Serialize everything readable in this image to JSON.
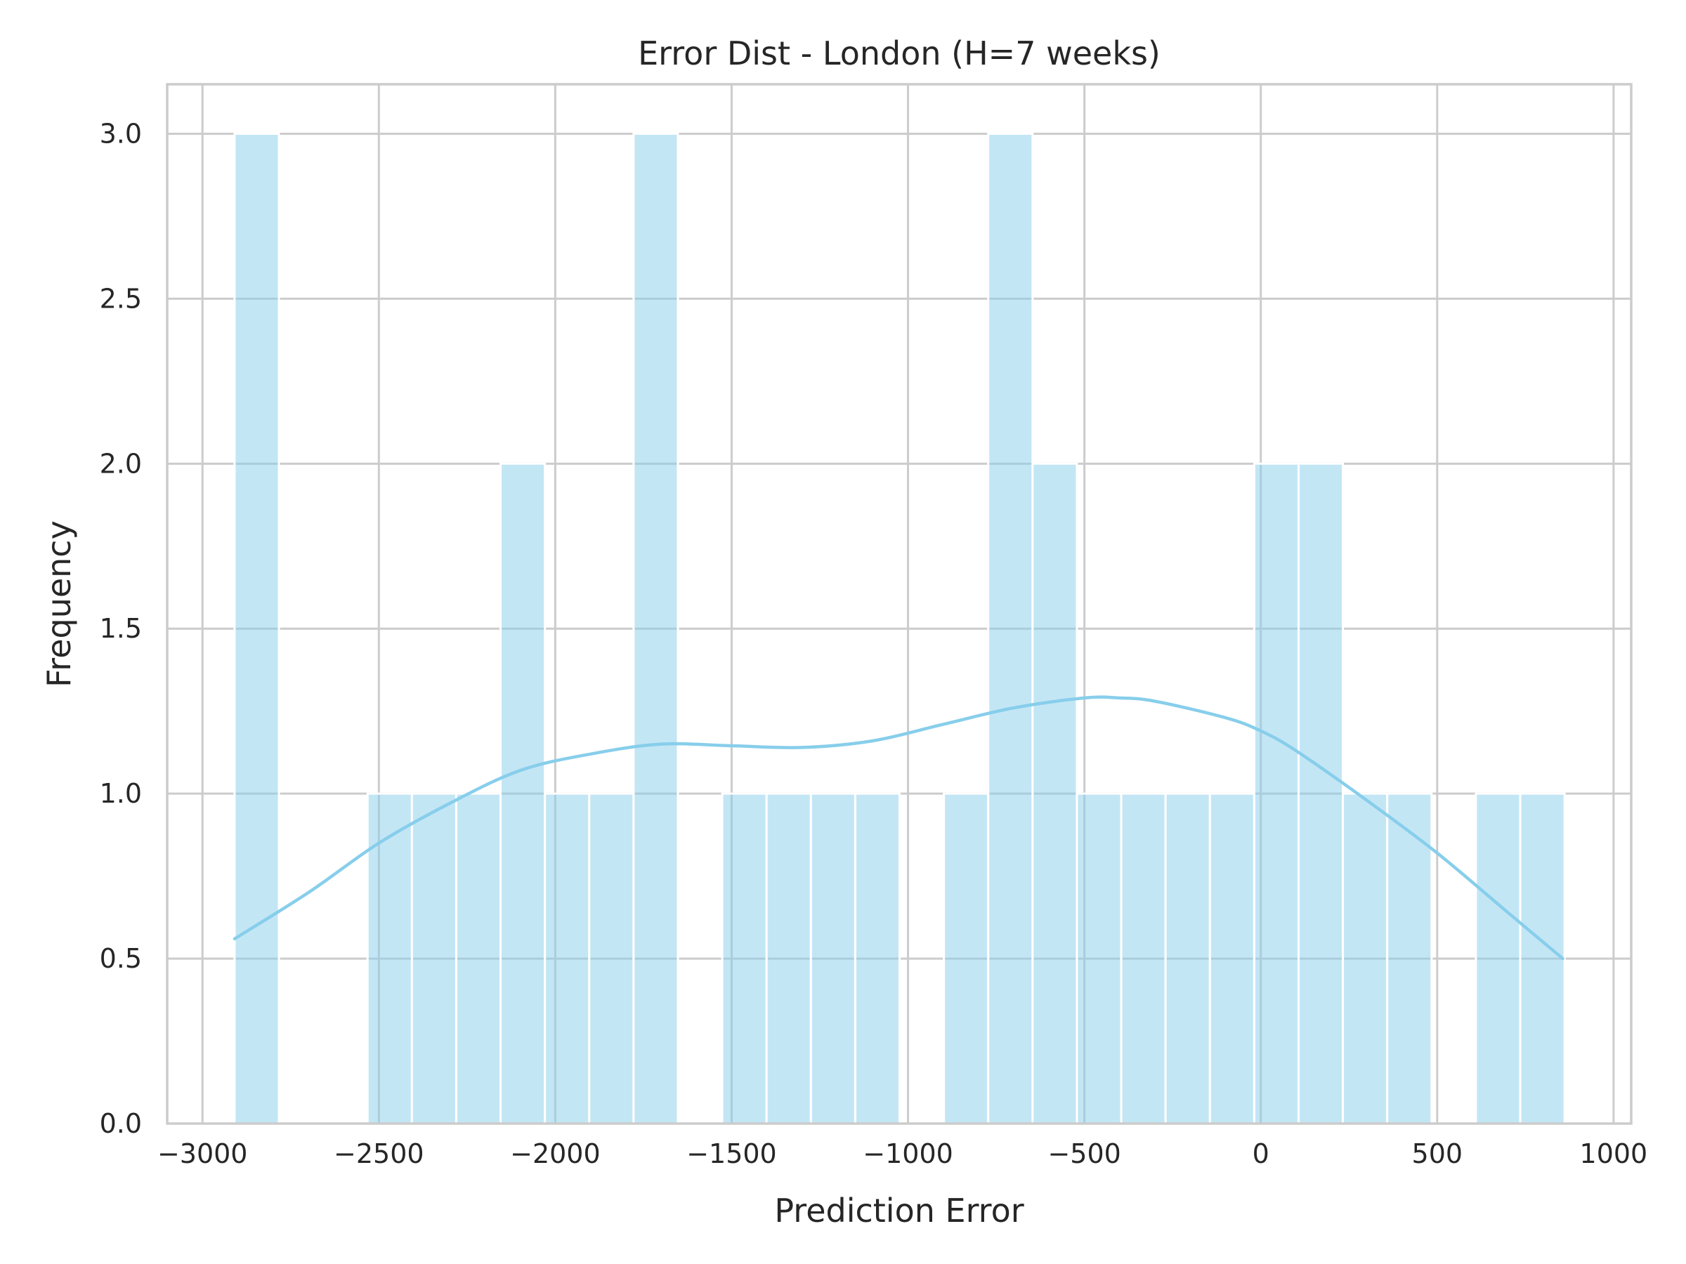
{
  "chart_data": {
    "type": "bar",
    "subtype": "histogram-with-kde",
    "title": "Error Dist - London (H=7 weeks)",
    "xlabel": "Prediction Error",
    "ylabel": "Frequency",
    "xlim": [
      -3100,
      1050
    ],
    "ylim": [
      0,
      3.15
    ],
    "xticks": [
      -3000,
      -2500,
      -2000,
      -1500,
      -1000,
      -500,
      0,
      500,
      1000
    ],
    "xtick_labels": [
      "−3000",
      "−2500",
      "−2000",
      "−1500",
      "−1000",
      "−500",
      "0",
      "500",
      "1000"
    ],
    "yticks": [
      0.0,
      0.5,
      1.0,
      1.5,
      2.0,
      2.5,
      3.0
    ],
    "ytick_labels": [
      "0.0",
      "0.5",
      "1.0",
      "1.5",
      "2.0",
      "2.5",
      "3.0"
    ],
    "grid": true,
    "bar_color": "#87ceeb",
    "bar_opacity": 0.5,
    "kde_color": "#87ceeb",
    "bin_start": -2909,
    "bin_width": 125.67,
    "counts": [
      3,
      0,
      0,
      1,
      1,
      1,
      2,
      1,
      1,
      3,
      0,
      1,
      1,
      1,
      1,
      0,
      1,
      3,
      2,
      1,
      1,
      1,
      1,
      2,
      2,
      1,
      1,
      0,
      1,
      1
    ],
    "kde": {
      "x": [
        -2909,
        -2700,
        -2500,
        -2300,
        -2100,
        -1900,
        -1700,
        -1500,
        -1300,
        -1100,
        -900,
        -700,
        -500,
        -400,
        -300,
        -100,
        0,
        100,
        300,
        500,
        700,
        856
      ],
      "y": [
        0.56,
        0.7,
        0.85,
        0.97,
        1.07,
        1.12,
        1.15,
        1.145,
        1.14,
        1.16,
        1.21,
        1.26,
        1.29,
        1.29,
        1.28,
        1.23,
        1.19,
        1.13,
        0.98,
        0.82,
        0.64,
        0.5
      ]
    }
  }
}
